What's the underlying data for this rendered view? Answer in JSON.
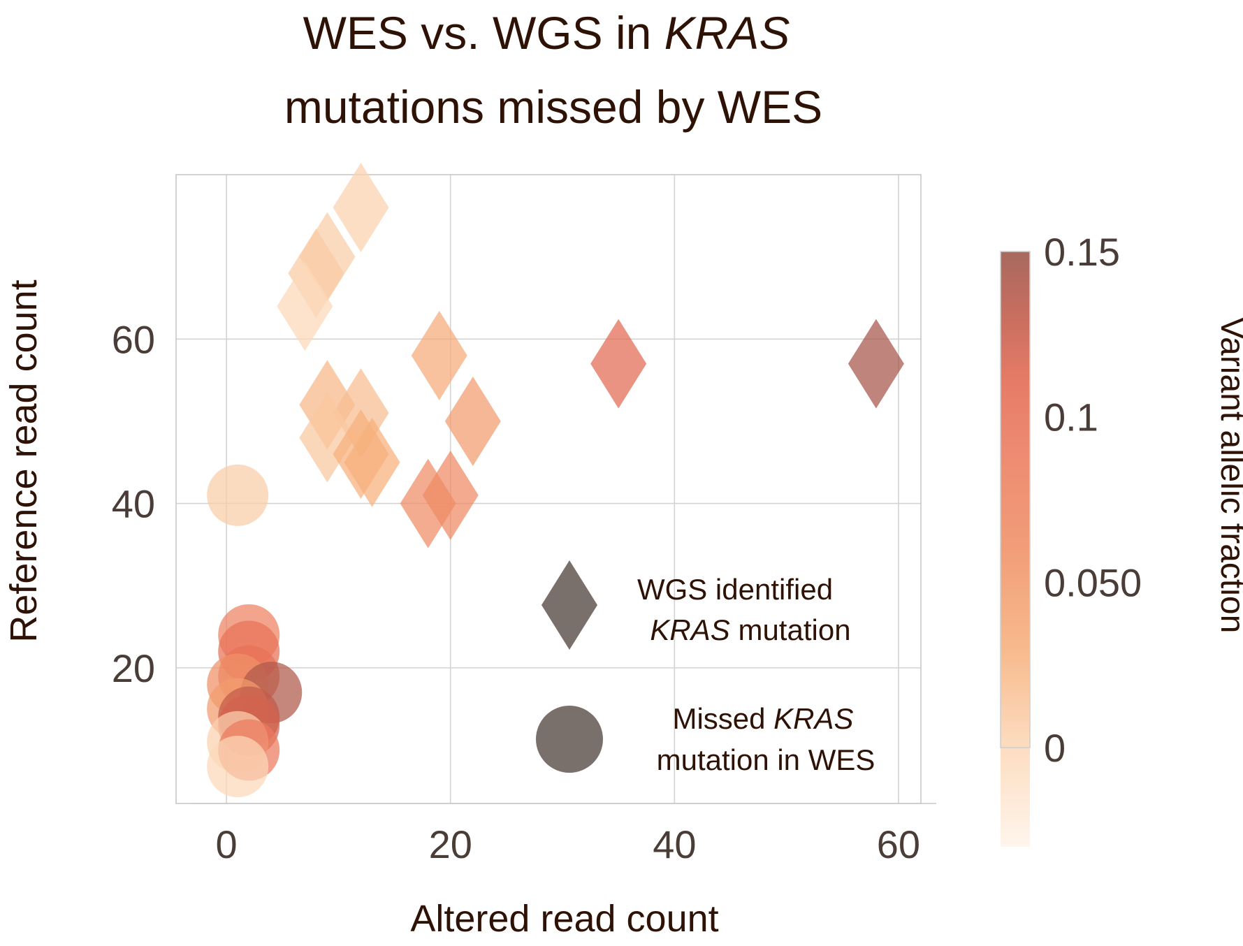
{
  "chart_data": {
    "type": "scatter",
    "title": {
      "line1_prefix": "WES vs. WGS in ",
      "line1_italic": "KRAS",
      "line2": "mutations missed by WES"
    },
    "xlabel": "Altered read count",
    "ylabel": "Reference read count",
    "xlim": [
      -4.5,
      62
    ],
    "ylim": [
      3.5,
      80
    ],
    "xticks": [
      0,
      20,
      40,
      60
    ],
    "xtick_labels": [
      "0",
      "20",
      "40",
      "60"
    ],
    "yticks": [
      20,
      40,
      60
    ],
    "ytick_labels": [
      "20",
      "40",
      "60"
    ],
    "grid": true,
    "legend_position": "inside-bottom-right",
    "legend": [
      {
        "shape": "diamond",
        "line1": "WGS identified",
        "line2_italic": "KRAS",
        "line2_rest": " mutation"
      },
      {
        "shape": "circle",
        "line1_prefix": "Missed ",
        "line1_italic": "KRAS",
        "line2": "mutation in WES"
      }
    ],
    "legend_color": "#7a706b",
    "colorbar": {
      "title": "Variant allelic fraction",
      "min": -0.03,
      "max": 0.15,
      "boxed_min": 0,
      "ticks": [
        0.15,
        0.1,
        0.05,
        0
      ],
      "tick_labels": [
        "0.15",
        "0.1",
        "0.050",
        "0"
      ],
      "stops": [
        {
          "v": -0.03,
          "color": "#fff4ea"
        },
        {
          "v": 0.0,
          "color": "#fcd8b8"
        },
        {
          "v": 0.03,
          "color": "#f6b07c"
        },
        {
          "v": 0.06,
          "color": "#f09066"
        },
        {
          "v": 0.09,
          "color": "#eb7a5e"
        },
        {
          "v": 0.11,
          "color": "#e36a52"
        },
        {
          "v": 0.13,
          "color": "#c25a4a"
        },
        {
          "v": 0.15,
          "color": "#9c5548"
        }
      ]
    },
    "series": [
      {
        "shape": "diamond",
        "points": [
          {
            "x": 12,
            "y": 76,
            "vaf": 0.005
          },
          {
            "x": 9,
            "y": 70,
            "vaf": 0.008
          },
          {
            "x": 8,
            "y": 68,
            "vaf": 0.01
          },
          {
            "x": 7,
            "y": 64,
            "vaf": 0.0
          },
          {
            "x": 19,
            "y": 58,
            "vaf": 0.035
          },
          {
            "x": 35,
            "y": 57,
            "vaf": 0.11
          },
          {
            "x": 58,
            "y": 57,
            "vaf": 0.145
          },
          {
            "x": 9,
            "y": 52,
            "vaf": 0.025
          },
          {
            "x": 12,
            "y": 51,
            "vaf": 0.02
          },
          {
            "x": 22,
            "y": 50,
            "vaf": 0.05
          },
          {
            "x": 9,
            "y": 48,
            "vaf": 0.012
          },
          {
            "x": 12,
            "y": 46,
            "vaf": 0.03
          },
          {
            "x": 13,
            "y": 45,
            "vaf": 0.03
          },
          {
            "x": 20,
            "y": 41,
            "vaf": 0.07
          },
          {
            "x": 18,
            "y": 40,
            "vaf": 0.065
          }
        ]
      },
      {
        "shape": "circle",
        "points": [
          {
            "x": 1,
            "y": 41,
            "vaf": 0.008
          },
          {
            "x": 2,
            "y": 24,
            "vaf": 0.08
          },
          {
            "x": 2,
            "y": 22,
            "vaf": 0.1
          },
          {
            "x": 2,
            "y": 19,
            "vaf": 0.1
          },
          {
            "x": 1,
            "y": 18,
            "vaf": 0.06
          },
          {
            "x": 4,
            "y": 17,
            "vaf": 0.14
          },
          {
            "x": 1,
            "y": 15,
            "vaf": 0.05
          },
          {
            "x": 2,
            "y": 14,
            "vaf": 0.13
          },
          {
            "x": 2,
            "y": 13,
            "vaf": 0.12
          },
          {
            "x": 1,
            "y": 11,
            "vaf": 0.005
          },
          {
            "x": 2,
            "y": 10,
            "vaf": 0.09
          },
          {
            "x": 1,
            "y": 8,
            "vaf": 0.0
          }
        ]
      }
    ]
  }
}
